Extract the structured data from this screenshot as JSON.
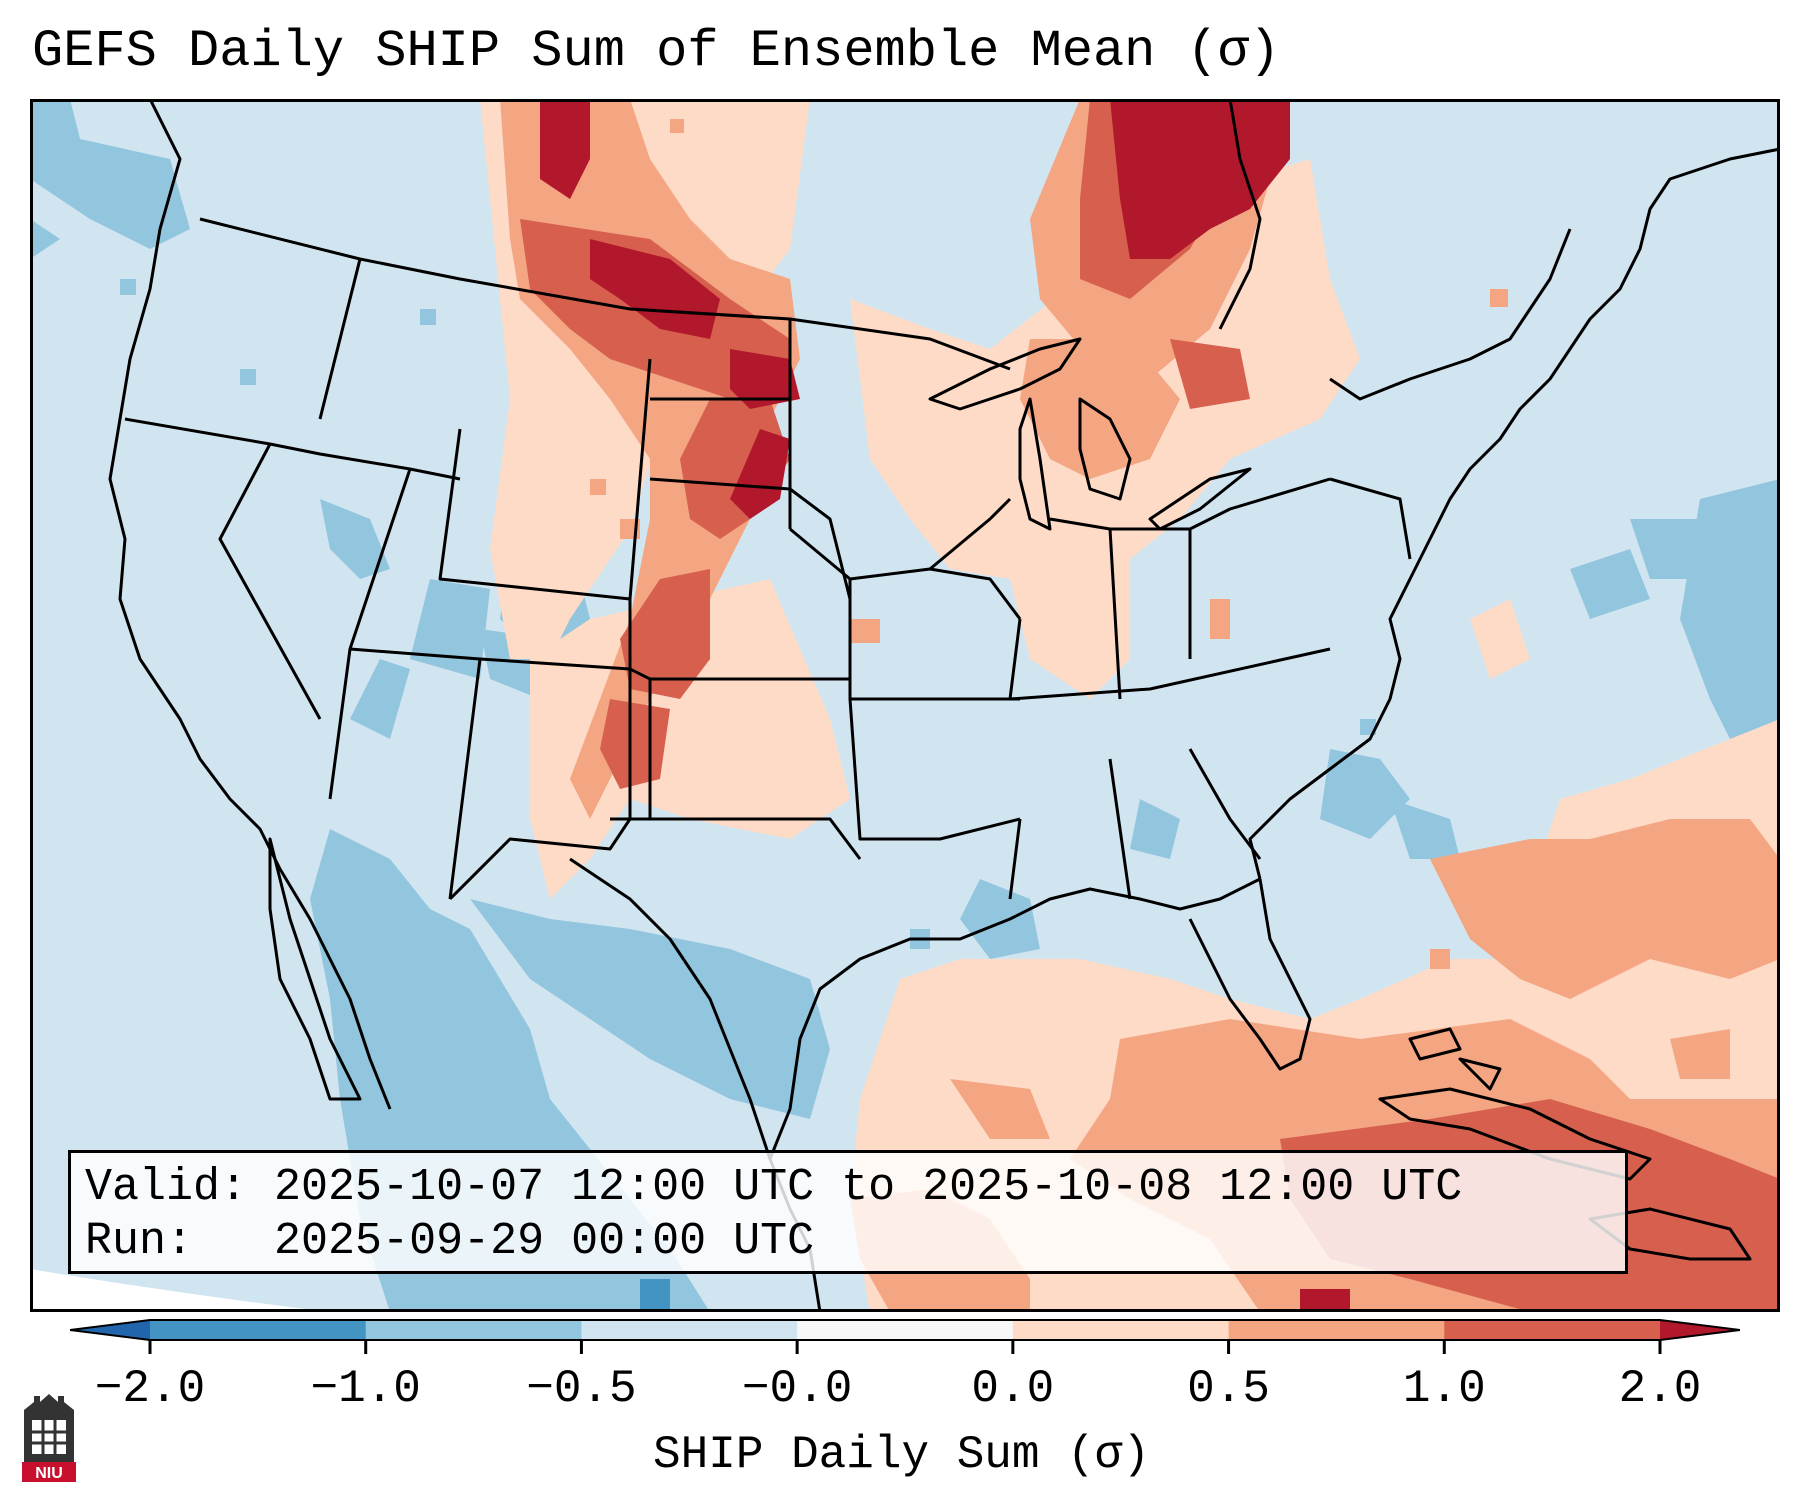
{
  "title": "GEFS Daily SHIP Sum of Ensemble Mean (σ)",
  "valid_label": "Valid:",
  "valid_value": "2025-10-07 12:00 UTC to 2025-10-08 12:00 UTC",
  "run_label": "Run:",
  "run_value": "2025-09-29 00:00 UTC",
  "colorbar": {
    "label": "SHIP Daily Sum (σ)",
    "ticks": [
      "−2.0",
      "−1.0",
      "−0.5",
      "−0.0",
      "0.0",
      "0.5",
      "1.0",
      "2.0"
    ],
    "bins": [
      {
        "range": "-2.0 to -1.0",
        "color": "#4393c3"
      },
      {
        "range": "-1.0 to -0.5",
        "color": "#92c5de"
      },
      {
        "range": "-0.5 to -0.0",
        "color": "#d1e5f0"
      },
      {
        "range": "-0.0 to 0.0",
        "color": "#f7f7f7"
      },
      {
        "range": "0.0 to 0.5",
        "color": "#fddbc7"
      },
      {
        "range": "0.5 to 1.0",
        "color": "#f4a582"
      },
      {
        "range": "1.0 to 2.0",
        "color": "#d6604d"
      }
    ],
    "under_color": "#2166ac",
    "over_color": "#b2182b"
  },
  "logo": {
    "text": "NIU",
    "color": "#c8102e"
  }
}
